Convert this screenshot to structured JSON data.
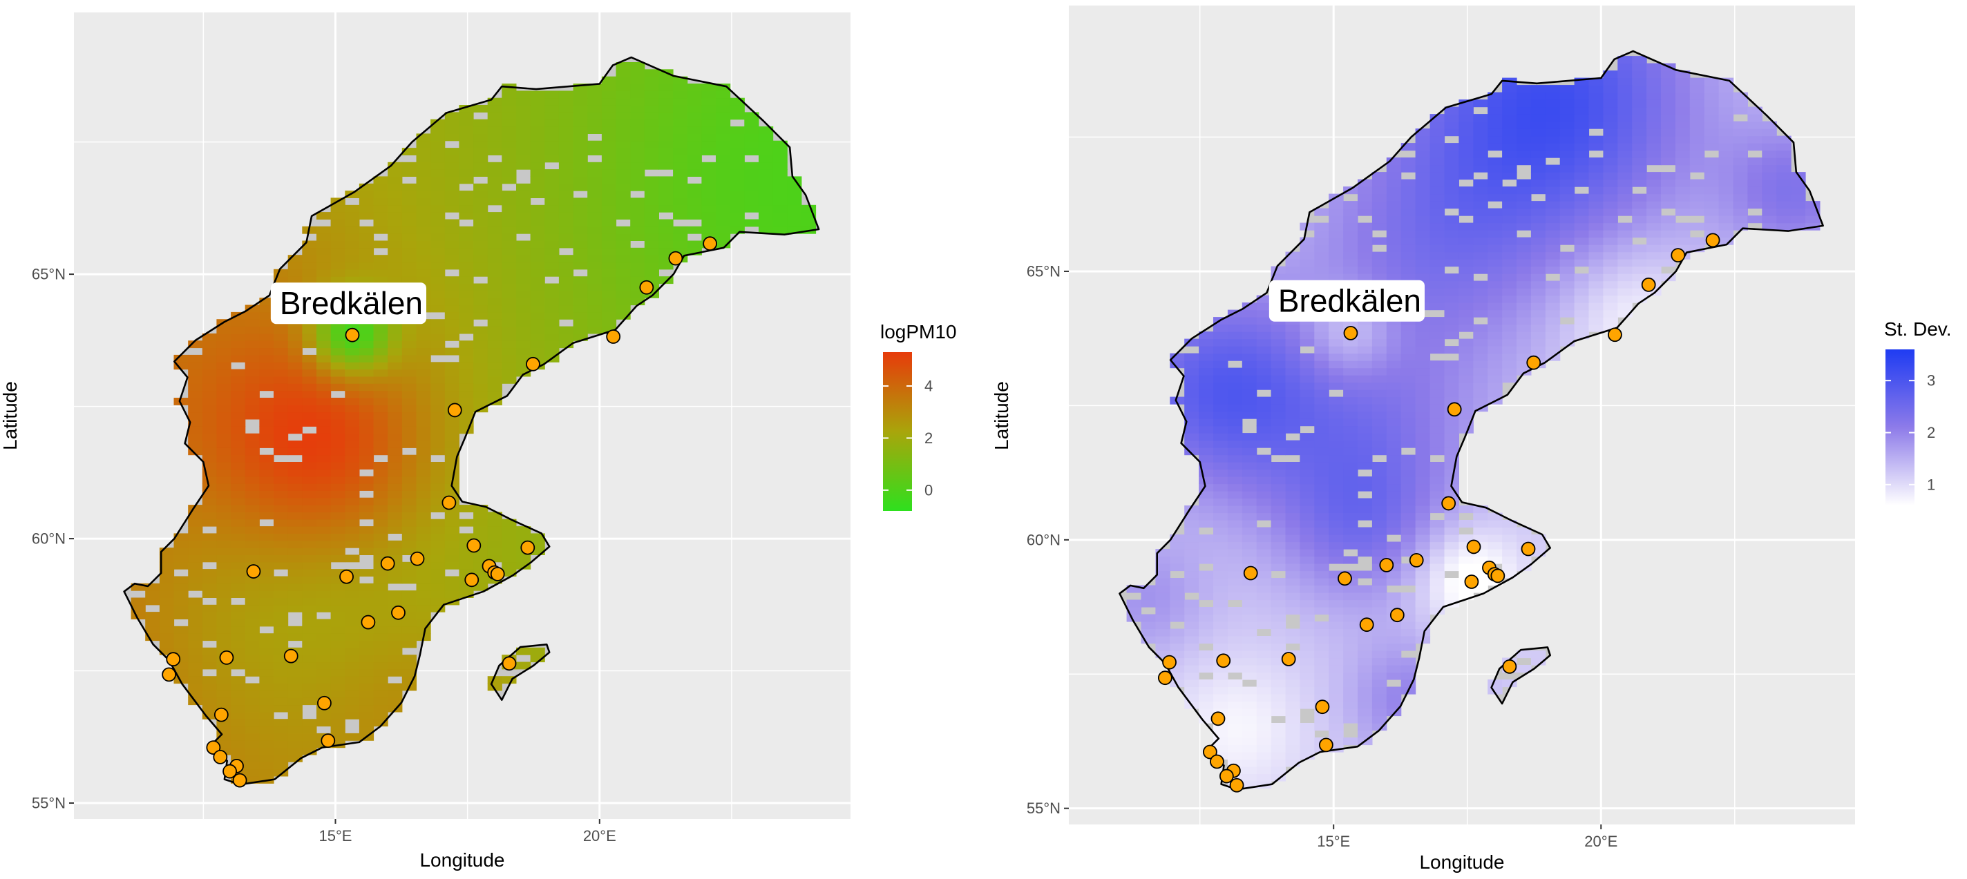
{
  "panels": [
    {
      "id": "left",
      "legend_title": "logPM10",
      "legend_ticks": [
        "4",
        "2",
        "0"
      ],
      "legend_values": [
        4,
        2,
        0
      ],
      "legend_range": [
        -0.8,
        5.3
      ],
      "legend_colors": [
        "#2ee01e",
        "#a9a50b",
        "#e73b0b"
      ],
      "xlabel": "Longitude",
      "ylabel": "Latitude",
      "x_ticks": [
        "15°E",
        "20°E"
      ],
      "x_tick_values": [
        15,
        20
      ],
      "y_ticks": [
        "65°N",
        "60°N",
        "55°N"
      ],
      "y_tick_values": [
        65,
        60,
        55
      ],
      "station_label": "Bredkälen"
    },
    {
      "id": "right",
      "legend_title": "St. Dev.",
      "legend_ticks": [
        "3",
        "2",
        "1"
      ],
      "legend_values": [
        3,
        2,
        1
      ],
      "legend_range": [
        0.6,
        3.6
      ],
      "legend_colors": [
        "#ffffff",
        "#8d7be9",
        "#1f3cf2"
      ],
      "xlabel": "Longitude",
      "ylabel": "Latitude",
      "x_ticks": [
        "15°E",
        "20°E"
      ],
      "x_tick_values": [
        15,
        20
      ],
      "y_ticks": [
        "65°N",
        "60°N",
        "55°N"
      ],
      "y_tick_values": [
        65,
        60,
        55
      ],
      "station_label": "Bredkälen"
    }
  ],
  "map": {
    "lon_range": [
      10.05,
      24.75
    ],
    "lat_range": [
      54.7,
      69.95
    ],
    "land_fill": "#c8c8c8",
    "panel_background": "#ebebeb",
    "gridline_color": "#ffffff",
    "station_fill": "#ffa500",
    "station_label_location": [
      15.3,
      64.45
    ],
    "stations": [
      [
        15.32,
        63.85
      ],
      [
        21.44,
        65.3
      ],
      [
        22.09,
        65.58
      ],
      [
        20.89,
        64.75
      ],
      [
        20.26,
        63.82
      ],
      [
        18.74,
        63.3
      ],
      [
        17.26,
        62.43
      ],
      [
        17.15,
        60.68
      ],
      [
        17.62,
        59.87
      ],
      [
        18.64,
        59.83
      ],
      [
        16.55,
        59.62
      ],
      [
        15.99,
        59.53
      ],
      [
        17.58,
        59.22
      ],
      [
        17.91,
        59.48
      ],
      [
        18.01,
        59.36
      ],
      [
        18.07,
        59.33
      ],
      [
        13.45,
        59.38
      ],
      [
        15.21,
        59.28
      ],
      [
        16.19,
        58.6
      ],
      [
        15.62,
        58.42
      ],
      [
        18.29,
        57.64
      ],
      [
        11.93,
        57.72
      ],
      [
        12.94,
        57.75
      ],
      [
        14.16,
        57.78
      ],
      [
        11.85,
        57.43
      ],
      [
        14.79,
        56.89
      ],
      [
        12.84,
        56.67
      ],
      [
        14.86,
        56.18
      ],
      [
        12.69,
        56.05
      ],
      [
        12.82,
        55.87
      ],
      [
        13.13,
        55.7
      ],
      [
        13.0,
        55.6
      ],
      [
        13.19,
        55.43
      ]
    ],
    "coastline": [
      [
        11.0,
        59.0
      ],
      [
        11.2,
        59.15
      ],
      [
        11.45,
        59.1
      ],
      [
        11.7,
        59.35
      ],
      [
        11.7,
        59.75
      ],
      [
        11.95,
        60.0
      ],
      [
        12.3,
        60.55
      ],
      [
        12.6,
        61.0
      ],
      [
        12.5,
        61.45
      ],
      [
        12.15,
        61.8
      ],
      [
        12.25,
        62.2
      ],
      [
        12.05,
        62.6
      ],
      [
        12.2,
        63.05
      ],
      [
        11.95,
        63.35
      ],
      [
        12.35,
        63.75
      ],
      [
        12.9,
        64.1
      ],
      [
        13.3,
        64.3
      ],
      [
        13.75,
        64.6
      ],
      [
        13.95,
        65.1
      ],
      [
        14.45,
        65.6
      ],
      [
        14.55,
        66.1
      ],
      [
        15.35,
        66.55
      ],
      [
        16.05,
        67.05
      ],
      [
        16.45,
        67.5
      ],
      [
        17.1,
        68.05
      ],
      [
        17.95,
        68.3
      ],
      [
        18.15,
        68.55
      ],
      [
        18.8,
        68.5
      ],
      [
        20.0,
        68.6
      ],
      [
        20.25,
        68.95
      ],
      [
        20.6,
        69.1
      ],
      [
        21.4,
        68.75
      ],
      [
        22.4,
        68.55
      ],
      [
        23.1,
        67.9
      ],
      [
        23.6,
        67.4
      ],
      [
        23.65,
        66.85
      ],
      [
        23.9,
        66.5
      ],
      [
        24.15,
        65.85
      ],
      [
        23.5,
        65.75
      ],
      [
        22.65,
        65.8
      ],
      [
        22.35,
        65.5
      ],
      [
        21.6,
        65.35
      ],
      [
        21.4,
        65.0
      ],
      [
        21.0,
        64.6
      ],
      [
        20.7,
        64.4
      ],
      [
        20.3,
        63.95
      ],
      [
        19.5,
        63.7
      ],
      [
        18.95,
        63.3
      ],
      [
        18.55,
        63.1
      ],
      [
        18.25,
        62.7
      ],
      [
        17.65,
        62.4
      ],
      [
        17.45,
        61.9
      ],
      [
        17.3,
        61.55
      ],
      [
        17.2,
        61.0
      ],
      [
        17.4,
        60.7
      ],
      [
        17.85,
        60.6
      ],
      [
        18.35,
        60.35
      ],
      [
        18.9,
        60.1
      ],
      [
        19.05,
        59.85
      ],
      [
        18.7,
        59.55
      ],
      [
        18.35,
        59.3
      ],
      [
        17.8,
        59.0
      ],
      [
        17.05,
        58.75
      ],
      [
        16.7,
        58.3
      ],
      [
        16.6,
        57.8
      ],
      [
        16.5,
        57.4
      ],
      [
        16.25,
        56.9
      ],
      [
        15.85,
        56.45
      ],
      [
        15.45,
        56.15
      ],
      [
        14.75,
        56.05
      ],
      [
        14.35,
        55.85
      ],
      [
        13.85,
        55.45
      ],
      [
        13.2,
        55.35
      ],
      [
        12.9,
        55.45
      ],
      [
        12.95,
        55.8
      ],
      [
        12.6,
        56.05
      ],
      [
        12.85,
        56.3
      ],
      [
        12.55,
        56.65
      ],
      [
        12.1,
        57.25
      ],
      [
        11.85,
        57.7
      ],
      [
        11.55,
        58.0
      ],
      [
        11.25,
        58.5
      ],
      [
        11.05,
        58.9
      ]
    ],
    "gotland": [
      [
        18.15,
        56.95
      ],
      [
        18.35,
        57.35
      ],
      [
        18.75,
        57.6
      ],
      [
        19.05,
        57.85
      ],
      [
        19.0,
        58.0
      ],
      [
        18.5,
        57.95
      ],
      [
        18.1,
        57.6
      ],
      [
        17.95,
        57.25
      ]
    ]
  }
}
